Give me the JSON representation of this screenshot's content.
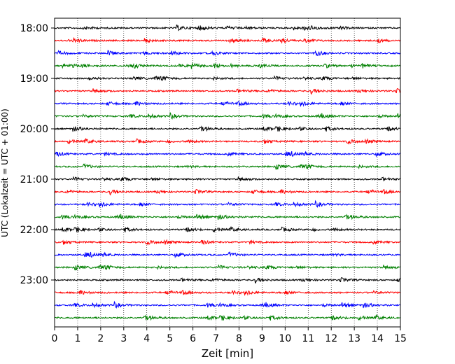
{
  "chart_data": {
    "type": "line",
    "title": "",
    "xlabel": "Zeit  [min]",
    "ylabel": "UTC (Lokalzeit = UTC + 01:00)",
    "xlim": [
      0,
      15
    ],
    "x_ticks": [
      0,
      1,
      2,
      3,
      4,
      5,
      6,
      7,
      8,
      9,
      10,
      11,
      12,
      13,
      14,
      15
    ],
    "grid": "vertical-dotted",
    "legend": "none",
    "y_ticks": [
      {
        "label": "18:00",
        "row": 0
      },
      {
        "label": "19:00",
        "row": 4
      },
      {
        "label": "20:00",
        "row": 8
      },
      {
        "label": "21:00",
        "row": 12
      },
      {
        "label": "22:00",
        "row": 16
      },
      {
        "label": "23:00",
        "row": 20
      }
    ],
    "trace_start_times": [
      "18:00",
      "18:15",
      "18:30",
      "18:45",
      "19:00",
      "19:15",
      "19:30",
      "19:45",
      "20:00",
      "20:15",
      "20:30",
      "20:45",
      "21:00",
      "21:15",
      "21:30",
      "21:45",
      "22:00",
      "22:15",
      "22:30",
      "22:45",
      "23:00",
      "23:15",
      "23:30",
      "23:45"
    ],
    "colors": [
      "#000000",
      "#ff0000",
      "#0000ff",
      "#008000"
    ]
  }
}
